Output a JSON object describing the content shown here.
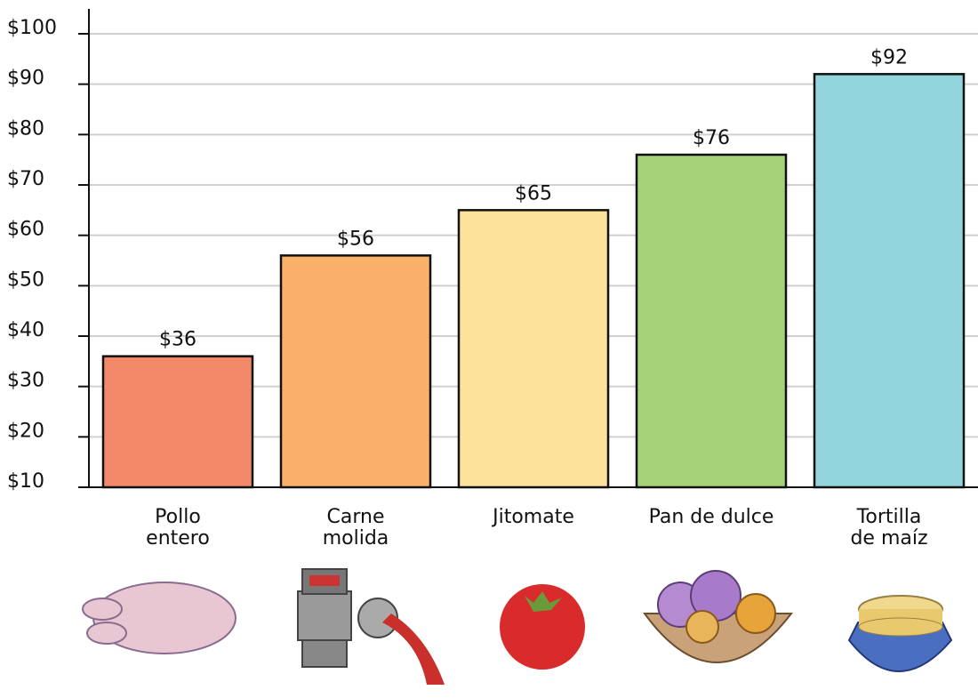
{
  "chart_data": {
    "type": "bar",
    "categories": [
      "Pollo\nentero",
      "Carne\nmolida",
      "Jitomate",
      "Pan de dulce",
      "Tortilla\nde maíz"
    ],
    "values": [
      36,
      56,
      65,
      76,
      92
    ],
    "value_labels": [
      "$36",
      "$56",
      "$65",
      "$76",
      "$92"
    ],
    "colors": [
      "#f4896a",
      "#f9b068",
      "#fde29c",
      "#a6d277",
      "#93d5dc"
    ],
    "ylim": [
      10,
      100
    ],
    "yticks": [
      {
        "value": 10,
        "label": "$10"
      },
      {
        "value": 20,
        "label": "$20"
      },
      {
        "value": 30,
        "label": "$30"
      },
      {
        "value": 40,
        "label": "$40"
      },
      {
        "value": 50,
        "label": "$50"
      },
      {
        "value": 60,
        "label": "$60"
      },
      {
        "value": 70,
        "label": "$70"
      },
      {
        "value": 80,
        "label": "$80"
      },
      {
        "value": 90,
        "label": "$90"
      },
      {
        "value": 100,
        "label": "$100"
      }
    ],
    "grid": true
  }
}
